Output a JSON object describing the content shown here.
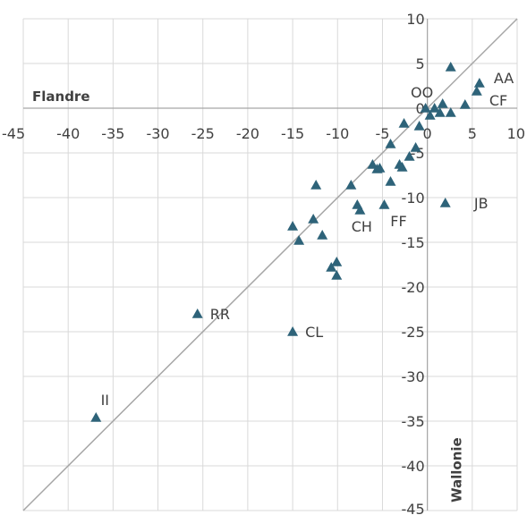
{
  "chart_data": {
    "type": "scatter",
    "xlabel": "Wallonie",
    "ylabel": "Flandre",
    "xlim": [
      -45,
      10
    ],
    "ylim": [
      -45,
      10
    ],
    "x_ticks": [
      "-45",
      "-40",
      "-35",
      "-30",
      "-25",
      "-20",
      "-15",
      "-10",
      "-5",
      "0",
      "5",
      "10"
    ],
    "y_ticks": [
      "10",
      "5",
      "0",
      "-5",
      "-10",
      "-15",
      "-20",
      "-25",
      "-30",
      "-35",
      "-40",
      "-45"
    ],
    "reference_line": "y = x",
    "grid": true,
    "marker_color": "#2e6379",
    "points": [
      {
        "x": -36.9,
        "y": -34.6,
        "label": "II"
      },
      {
        "x": -25.6,
        "y": -23.0,
        "label": "RR"
      },
      {
        "x": -15.0,
        "y": -25.0,
        "label": "CL"
      },
      {
        "x": -15.0,
        "y": -13.2,
        "label": ""
      },
      {
        "x": -14.3,
        "y": -14.8,
        "label": ""
      },
      {
        "x": -12.7,
        "y": -12.4,
        "label": ""
      },
      {
        "x": -12.4,
        "y": -8.6,
        "label": ""
      },
      {
        "x": -11.7,
        "y": -14.2,
        "label": ""
      },
      {
        "x": -10.7,
        "y": -17.8,
        "label": ""
      },
      {
        "x": -10.1,
        "y": -17.2,
        "label": ""
      },
      {
        "x": -10.1,
        "y": -18.7,
        "label": ""
      },
      {
        "x": -8.5,
        "y": -8.6,
        "label": ""
      },
      {
        "x": -7.8,
        "y": -10.8,
        "label": ""
      },
      {
        "x": -7.5,
        "y": -11.4,
        "label": "CH"
      },
      {
        "x": -6.1,
        "y": -6.3,
        "label": ""
      },
      {
        "x": -5.6,
        "y": -6.8,
        "label": ""
      },
      {
        "x": -5.3,
        "y": -6.7,
        "label": ""
      },
      {
        "x": -4.8,
        "y": -10.8,
        "label": "FF"
      },
      {
        "x": -4.1,
        "y": -4.0,
        "label": ""
      },
      {
        "x": -4.1,
        "y": -8.2,
        "label": ""
      },
      {
        "x": -3.1,
        "y": -6.3,
        "label": ""
      },
      {
        "x": -2.8,
        "y": -6.6,
        "label": ""
      },
      {
        "x": -2.6,
        "y": -1.7,
        "label": ""
      },
      {
        "x": -2.0,
        "y": -5.4,
        "label": ""
      },
      {
        "x": -1.3,
        "y": -4.4,
        "label": ""
      },
      {
        "x": -0.9,
        "y": -2.0,
        "label": ""
      },
      {
        "x": -0.2,
        "y": 0.0,
        "label": "OO"
      },
      {
        "x": 0.3,
        "y": -0.8,
        "label": ""
      },
      {
        "x": 0.8,
        "y": 0.0,
        "label": ""
      },
      {
        "x": 1.4,
        "y": -0.5,
        "label": ""
      },
      {
        "x": 1.7,
        "y": 0.5,
        "label": ""
      },
      {
        "x": 2.0,
        "y": -10.6,
        "label": "JB"
      },
      {
        "x": 2.6,
        "y": 4.6,
        "label": ""
      },
      {
        "x": 2.6,
        "y": -0.5,
        "label": ""
      },
      {
        "x": 4.2,
        "y": 0.4,
        "label": ""
      },
      {
        "x": 5.5,
        "y": 1.9,
        "label": "CF"
      },
      {
        "x": 5.8,
        "y": 2.8,
        "label": "AA"
      }
    ]
  }
}
